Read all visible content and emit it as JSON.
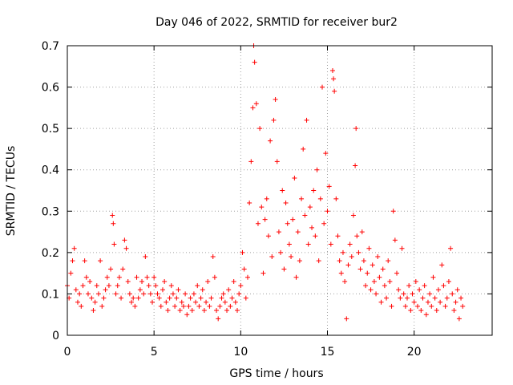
{
  "chart_data": {
    "type": "scatter",
    "title": "Day 046 of 2022, SRMTID for receiver bur2",
    "xlabel": "GPS time / hours",
    "ylabel": "SRMTID / TECUs",
    "xlim": [
      0,
      24.5
    ],
    "ylim": [
      0,
      0.7
    ],
    "x_ticks": [
      "0",
      "5",
      "10",
      "15",
      "20"
    ],
    "x_tick_values": [
      0,
      5,
      10,
      15,
      20
    ],
    "y_ticks": [
      "0",
      "0.1",
      "0.2",
      "0.3",
      "0.4",
      "0.5",
      "0.6",
      "0.7"
    ],
    "y_tick_values": [
      0,
      0.1,
      0.2,
      0.3,
      0.4,
      0.5,
      0.6,
      0.7
    ],
    "grid": true,
    "marker": "+",
    "marker_color": "#ff0000",
    "series": [
      {
        "name": "bur2",
        "points": [
          [
            0.0,
            0.12
          ],
          [
            0.1,
            0.09
          ],
          [
            0.2,
            0.15
          ],
          [
            0.3,
            0.18
          ],
          [
            0.4,
            0.21
          ],
          [
            0.5,
            0.11
          ],
          [
            0.6,
            0.08
          ],
          [
            0.7,
            0.1
          ],
          [
            0.8,
            0.07
          ],
          [
            0.9,
            0.12
          ],
          [
            1.0,
            0.18
          ],
          [
            1.1,
            0.14
          ],
          [
            1.2,
            0.1
          ],
          [
            1.3,
            0.13
          ],
          [
            1.4,
            0.09
          ],
          [
            1.5,
            0.06
          ],
          [
            1.6,
            0.08
          ],
          [
            1.7,
            0.12
          ],
          [
            1.8,
            0.1
          ],
          [
            1.9,
            0.18
          ],
          [
            2.0,
            0.07
          ],
          [
            2.1,
            0.09
          ],
          [
            2.2,
            0.11
          ],
          [
            2.3,
            0.14
          ],
          [
            2.4,
            0.12
          ],
          [
            2.5,
            0.16
          ],
          [
            2.6,
            0.29
          ],
          [
            2.65,
            0.27
          ],
          [
            2.7,
            0.22
          ],
          [
            2.8,
            0.1
          ],
          [
            2.9,
            0.12
          ],
          [
            3.0,
            0.14
          ],
          [
            3.1,
            0.09
          ],
          [
            3.2,
            0.16
          ],
          [
            3.3,
            0.23
          ],
          [
            3.4,
            0.21
          ],
          [
            3.5,
            0.13
          ],
          [
            3.6,
            0.1
          ],
          [
            3.7,
            0.08
          ],
          [
            3.8,
            0.09
          ],
          [
            3.9,
            0.07
          ],
          [
            4.0,
            0.14
          ],
          [
            4.1,
            0.09
          ],
          [
            4.2,
            0.11
          ],
          [
            4.3,
            0.13
          ],
          [
            4.4,
            0.1
          ],
          [
            4.5,
            0.19
          ],
          [
            4.6,
            0.14
          ],
          [
            4.7,
            0.12
          ],
          [
            4.8,
            0.1
          ],
          [
            4.9,
            0.08
          ],
          [
            5.0,
            0.14
          ],
          [
            5.1,
            0.12
          ],
          [
            5.2,
            0.1
          ],
          [
            5.3,
            0.09
          ],
          [
            5.4,
            0.07
          ],
          [
            5.5,
            0.11
          ],
          [
            5.6,
            0.13
          ],
          [
            5.7,
            0.08
          ],
          [
            5.8,
            0.06
          ],
          [
            5.9,
            0.09
          ],
          [
            6.0,
            0.12
          ],
          [
            6.1,
            0.1
          ],
          [
            6.2,
            0.07
          ],
          [
            6.3,
            0.09
          ],
          [
            6.4,
            0.11
          ],
          [
            6.5,
            0.06
          ],
          [
            6.6,
            0.08
          ],
          [
            6.7,
            0.07
          ],
          [
            6.8,
            0.1
          ],
          [
            6.9,
            0.05
          ],
          [
            7.0,
            0.07
          ],
          [
            7.1,
            0.09
          ],
          [
            7.2,
            0.06
          ],
          [
            7.3,
            0.1
          ],
          [
            7.4,
            0.08
          ],
          [
            7.5,
            0.12
          ],
          [
            7.6,
            0.07
          ],
          [
            7.7,
            0.09
          ],
          [
            7.8,
            0.11
          ],
          [
            7.9,
            0.06
          ],
          [
            8.0,
            0.08
          ],
          [
            8.1,
            0.13
          ],
          [
            8.2,
            0.07
          ],
          [
            8.3,
            0.09
          ],
          [
            8.4,
            0.19
          ],
          [
            8.5,
            0.14
          ],
          [
            8.6,
            0.06
          ],
          [
            8.7,
            0.04
          ],
          [
            8.8,
            0.07
          ],
          [
            8.9,
            0.09
          ],
          [
            9.0,
            0.1
          ],
          [
            9.1,
            0.08
          ],
          [
            9.2,
            0.06
          ],
          [
            9.3,
            0.11
          ],
          [
            9.4,
            0.07
          ],
          [
            9.5,
            0.09
          ],
          [
            9.6,
            0.13
          ],
          [
            9.7,
            0.08
          ],
          [
            9.8,
            0.06
          ],
          [
            9.9,
            0.1
          ],
          [
            10.0,
            0.12
          ],
          [
            10.1,
            0.2
          ],
          [
            10.2,
            0.16
          ],
          [
            10.3,
            0.09
          ],
          [
            10.4,
            0.14
          ],
          [
            10.5,
            0.32
          ],
          [
            10.6,
            0.42
          ],
          [
            10.7,
            0.55
          ],
          [
            10.75,
            0.7
          ],
          [
            10.8,
            0.66
          ],
          [
            10.9,
            0.56
          ],
          [
            11.0,
            0.27
          ],
          [
            11.1,
            0.5
          ],
          [
            11.2,
            0.31
          ],
          [
            11.3,
            0.15
          ],
          [
            11.4,
            0.28
          ],
          [
            11.5,
            0.33
          ],
          [
            11.6,
            0.24
          ],
          [
            11.7,
            0.47
          ],
          [
            11.8,
            0.19
          ],
          [
            11.9,
            0.52
          ],
          [
            12.0,
            0.57
          ],
          [
            12.1,
            0.42
          ],
          [
            12.2,
            0.25
          ],
          [
            12.3,
            0.2
          ],
          [
            12.4,
            0.35
          ],
          [
            12.5,
            0.16
          ],
          [
            12.6,
            0.32
          ],
          [
            12.7,
            0.27
          ],
          [
            12.8,
            0.22
          ],
          [
            12.9,
            0.19
          ],
          [
            13.0,
            0.28
          ],
          [
            13.1,
            0.38
          ],
          [
            13.2,
            0.14
          ],
          [
            13.3,
            0.25
          ],
          [
            13.4,
            0.18
          ],
          [
            13.5,
            0.33
          ],
          [
            13.6,
            0.45
          ],
          [
            13.7,
            0.29
          ],
          [
            13.8,
            0.52
          ],
          [
            13.9,
            0.22
          ],
          [
            14.0,
            0.31
          ],
          [
            14.1,
            0.26
          ],
          [
            14.2,
            0.35
          ],
          [
            14.3,
            0.24
          ],
          [
            14.4,
            0.4
          ],
          [
            14.5,
            0.18
          ],
          [
            14.6,
            0.33
          ],
          [
            14.7,
            0.6
          ],
          [
            14.8,
            0.27
          ],
          [
            14.9,
            0.44
          ],
          [
            15.0,
            0.3
          ],
          [
            15.1,
            0.36
          ],
          [
            15.2,
            0.22
          ],
          [
            15.3,
            0.64
          ],
          [
            15.35,
            0.62
          ],
          [
            15.4,
            0.59
          ],
          [
            15.5,
            0.33
          ],
          [
            15.6,
            0.24
          ],
          [
            15.7,
            0.18
          ],
          [
            15.8,
            0.15
          ],
          [
            15.9,
            0.2
          ],
          [
            16.0,
            0.13
          ],
          [
            16.1,
            0.04
          ],
          [
            16.2,
            0.17
          ],
          [
            16.3,
            0.22
          ],
          [
            16.4,
            0.19
          ],
          [
            16.5,
            0.29
          ],
          [
            16.6,
            0.41
          ],
          [
            16.65,
            0.5
          ],
          [
            16.7,
            0.24
          ],
          [
            16.8,
            0.2
          ],
          [
            16.9,
            0.16
          ],
          [
            17.0,
            0.25
          ],
          [
            17.1,
            0.18
          ],
          [
            17.2,
            0.12
          ],
          [
            17.3,
            0.15
          ],
          [
            17.4,
            0.21
          ],
          [
            17.5,
            0.11
          ],
          [
            17.6,
            0.17
          ],
          [
            17.7,
            0.13
          ],
          [
            17.8,
            0.1
          ],
          [
            17.9,
            0.19
          ],
          [
            18.0,
            0.14
          ],
          [
            18.1,
            0.08
          ],
          [
            18.2,
            0.16
          ],
          [
            18.3,
            0.12
          ],
          [
            18.4,
            0.09
          ],
          [
            18.5,
            0.18
          ],
          [
            18.6,
            0.13
          ],
          [
            18.7,
            0.07
          ],
          [
            18.8,
            0.3
          ],
          [
            18.9,
            0.23
          ],
          [
            19.0,
            0.15
          ],
          [
            19.1,
            0.11
          ],
          [
            19.2,
            0.09
          ],
          [
            19.3,
            0.21
          ],
          [
            19.4,
            0.1
          ],
          [
            19.5,
            0.07
          ],
          [
            19.6,
            0.09
          ],
          [
            19.7,
            0.12
          ],
          [
            19.8,
            0.06
          ],
          [
            19.9,
            0.1
          ],
          [
            20.0,
            0.08
          ],
          [
            20.1,
            0.13
          ],
          [
            20.2,
            0.07
          ],
          [
            20.3,
            0.11
          ],
          [
            20.4,
            0.06
          ],
          [
            20.5,
            0.09
          ],
          [
            20.6,
            0.12
          ],
          [
            20.7,
            0.05
          ],
          [
            20.8,
            0.08
          ],
          [
            20.9,
            0.1
          ],
          [
            21.0,
            0.07
          ],
          [
            21.1,
            0.14
          ],
          [
            21.2,
            0.09
          ],
          [
            21.3,
            0.06
          ],
          [
            21.4,
            0.11
          ],
          [
            21.5,
            0.08
          ],
          [
            21.6,
            0.17
          ],
          [
            21.7,
            0.12
          ],
          [
            21.8,
            0.07
          ],
          [
            21.9,
            0.09
          ],
          [
            22.0,
            0.13
          ],
          [
            22.1,
            0.21
          ],
          [
            22.2,
            0.1
          ],
          [
            22.3,
            0.06
          ],
          [
            22.4,
            0.08
          ],
          [
            22.5,
            0.11
          ],
          [
            22.6,
            0.04
          ],
          [
            22.7,
            0.09
          ],
          [
            22.8,
            0.07
          ]
        ]
      }
    ]
  }
}
